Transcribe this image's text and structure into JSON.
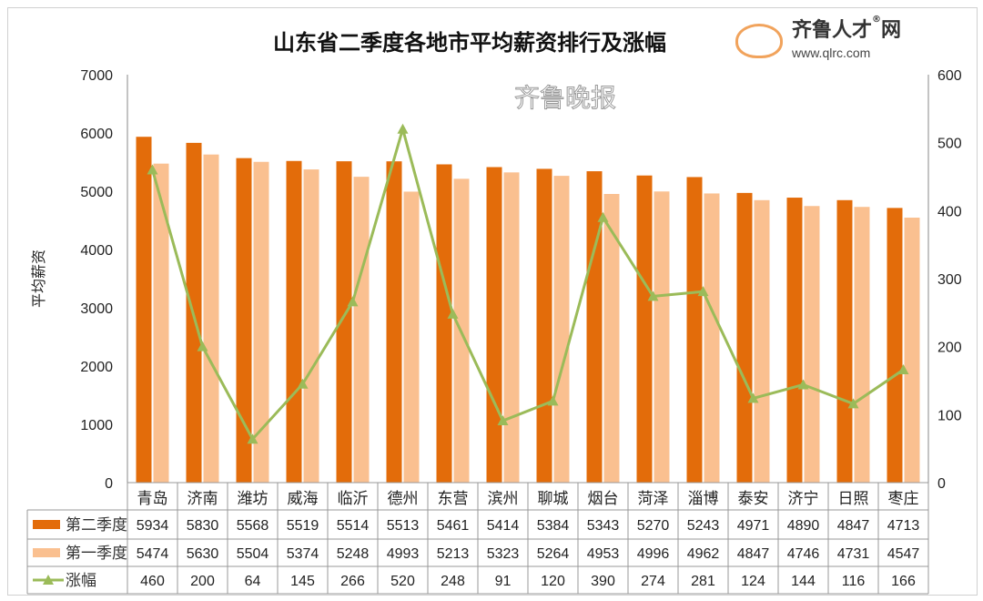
{
  "chart_data": {
    "type": "bar",
    "title": "山东省二季度各地市平均薪资排行及涨幅",
    "ylabel": "平均薪资",
    "ylim": [
      0,
      7000
    ],
    "y2lim": [
      0,
      600
    ],
    "yticks": [
      0,
      1000,
      2000,
      3000,
      4000,
      5000,
      6000,
      7000
    ],
    "y2ticks": [
      0,
      100,
      200,
      300,
      400,
      500,
      600
    ],
    "grid": false,
    "legend": "data-table",
    "categories": [
      "青岛",
      "济南",
      "潍坊",
      "威海",
      "临沂",
      "德州",
      "东营",
      "滨州",
      "聊城",
      "烟台",
      "菏泽",
      "淄博",
      "泰安",
      "济宁",
      "日照",
      "枣庄"
    ],
    "series": [
      {
        "name": "第二季度",
        "type": "bar",
        "axis": "left",
        "color": "#E36C0A",
        "values": [
          5934,
          5830,
          5568,
          5519,
          5514,
          5513,
          5461,
          5414,
          5384,
          5343,
          5270,
          5243,
          4971,
          4890,
          4847,
          4713
        ]
      },
      {
        "name": "第一季度",
        "type": "bar",
        "axis": "left",
        "color": "#FAC090",
        "values": [
          5474,
          5630,
          5504,
          5374,
          5248,
          4993,
          5213,
          5323,
          5264,
          4953,
          4996,
          4962,
          4847,
          4746,
          4731,
          4547
        ]
      },
      {
        "name": "涨幅",
        "type": "line",
        "axis": "right",
        "color": "#9BBB59",
        "marker": "triangle",
        "values": [
          460,
          200,
          64,
          145,
          266,
          520,
          248,
          91,
          120,
          390,
          274,
          281,
          124,
          144,
          116,
          166
        ]
      }
    ]
  },
  "logo": {
    "name": "齐鲁人才",
    "suffix": "网",
    "url": "www.qlrc.com"
  },
  "watermark": "齐鲁晚报"
}
